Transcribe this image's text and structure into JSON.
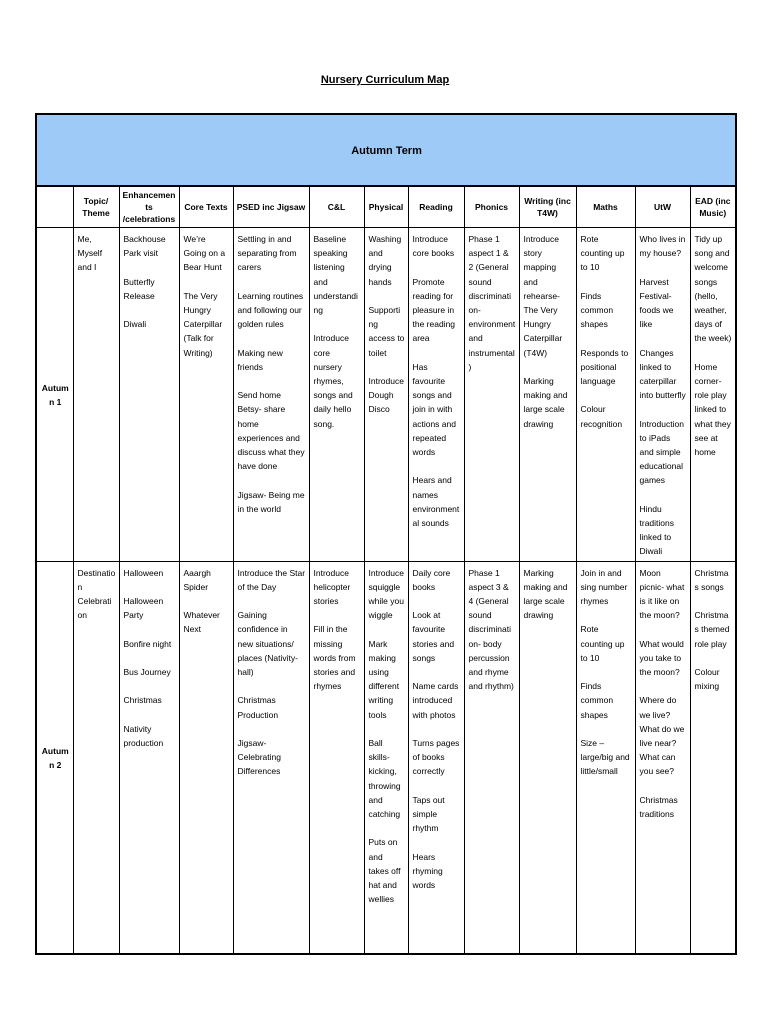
{
  "page": {
    "title": "Nursery Curriculum Map"
  },
  "table": {
    "banner": "Autumn Term",
    "banner_bg": "#9ECAF7",
    "columns": [
      "",
      "Topic/ Theme",
      "Enhancements /celebrations",
      "Core Texts",
      "PSED inc Jigsaw",
      "C&L",
      "Physical",
      "Reading",
      "Phonics",
      "Writing (inc T4W)",
      "Maths",
      "UtW",
      "EAD (inc Music)"
    ],
    "rows": [
      {
        "label": "Autumn 1",
        "cells": [
          [
            "Me, Myself and I"
          ],
          [
            "Backhouse Park visit",
            "Butterfly Release",
            "Diwali"
          ],
          [
            "We’re Going on a Bear Hunt",
            "The Very Hungry Caterpillar (Talk for Writing)"
          ],
          [
            "Settling in and separating from carers",
            "Learning routines and following our golden rules",
            "Making new friends",
            "Send home Betsy- share home experiences and discuss what they have done",
            "Jigsaw- Being me in the world"
          ],
          [
            "Baseline speaking listening and understanding",
            "Introduce core nursery rhymes, songs and daily hello song."
          ],
          [
            "Washing and drying hands",
            "Supporting access to toilet",
            "Introduce Dough Disco"
          ],
          [
            "Introduce core books",
            "Promote reading for pleasure in the reading area",
            "Has favourite songs and join in with actions and repeated words",
            "Hears and names environmental sounds"
          ],
          [
            "Phase 1 aspect 1 & 2 (General sound discrimination- environment and instrumental)"
          ],
          [
            "Introduce story mapping and rehearse- The Very Hungry Caterpillar (T4W)",
            "Marking making and large scale drawing"
          ],
          [
            "Rote counting up to 10",
            "Finds common shapes",
            "Responds to positional language",
            "Colour recognition"
          ],
          [
            "Who lives in my house?",
            "Harvest Festival- foods we like",
            "Changes linked to caterpillar into butterfly",
            "Introduction to iPads and simple educational games",
            "Hindu traditions linked to Diwali"
          ],
          [
            "Tidy up song and welcome songs (hello, weather, days of the week)",
            "Home corner- role play linked to what they see at home"
          ]
        ]
      },
      {
        "label": "Autumn 2",
        "cells": [
          [
            "Destination Celebration"
          ],
          [
            "Halloween",
            "Halloween Party",
            "Bonfire night",
            "Bus Journey",
            "Christmas",
            "Nativity production"
          ],
          [
            "Aaargh Spider",
            "Whatever Next"
          ],
          [
            "Introduce the Star of the Day",
            "Gaining confidence in new situations/ places (Nativity- hall)",
            "Christmas Production",
            "Jigsaw- Celebrating Differences"
          ],
          [
            "Introduce helicopter stories",
            "Fill in the missing words from stories and rhymes"
          ],
          [
            "Introduce squiggle while you wiggle",
            "Mark making using different writing tools",
            "Ball skills- kicking, throwing and catching",
            "Puts on and takes off hat and wellies"
          ],
          [
            "Daily core books",
            "Look at favourite stories and songs",
            "Name cards introduced with photos",
            "Turns pages of books correctly",
            "Taps out simple rhythm",
            "Hears rhyming words"
          ],
          [
            "Phase 1 aspect 3 & 4 (General sound discrimination- body percussion and rhyme and rhythm)"
          ],
          [
            "Marking making and large scale drawing"
          ],
          [
            "Join in and sing number rhymes",
            "Rote counting up to 10",
            "Finds common shapes",
            "Size – large/big and little/small"
          ],
          [
            "Moon picnic- what is it like on the moon?",
            "What would you take to the moon?",
            "Where do we live? What do we live near? What can you see?",
            "Christmas traditions"
          ],
          [
            "Christmas songs",
            "Christmas themed role play",
            "Colour mixing"
          ]
        ]
      }
    ]
  }
}
